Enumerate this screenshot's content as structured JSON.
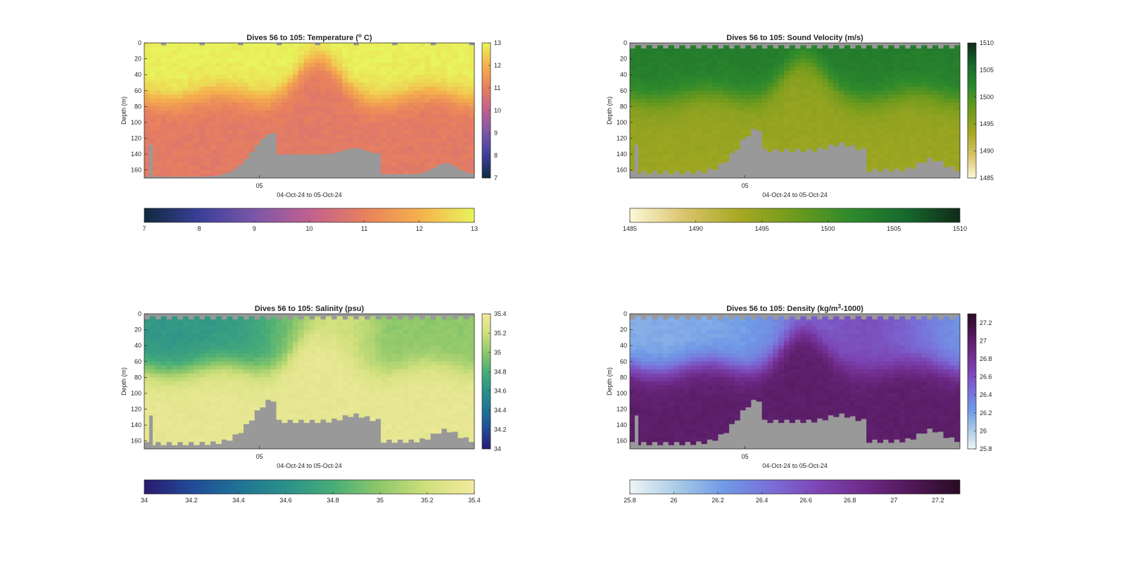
{
  "chart_data": [
    {
      "type": "heatmap",
      "variable": "temperature",
      "title_parts": {
        "pre": "Dives 56 to 105: Temperature (",
        "sup": "o",
        "post": " C)"
      },
      "xlabel": "04-Oct-24 to 05-Oct-24",
      "ylabel": "Depth (m)",
      "x_ticks": [
        {
          "label": "05",
          "frac": 0.349
        }
      ],
      "y_ticks": [
        0,
        20,
        40,
        60,
        80,
        100,
        120,
        140,
        160
      ],
      "ylim": [
        0,
        170
      ],
      "clim": [
        7,
        13
      ],
      "colorbar_ticks": [
        "7",
        "8",
        "9",
        "10",
        "11",
        "12",
        "13"
      ],
      "hcolorbar_ticks": [
        "7",
        "8",
        "9",
        "10",
        "11",
        "12",
        "13"
      ],
      "colormap": [
        "#0f2a3e",
        "#3b3f9a",
        "#7a56a8",
        "#c0608f",
        "#e8805e",
        "#f5b04c",
        "#e8f45c"
      ],
      "nodata_color": "#999999",
      "surface_gaps": false,
      "profile_fn": "temp",
      "bottom_offset": 0
    },
    {
      "type": "heatmap",
      "variable": "sound_velocity",
      "title_parts": {
        "pre": "Dives 56 to 105: Sound Velocity (m/s)",
        "sup": "",
        "post": ""
      },
      "xlabel": "04-Oct-24 to 05-Oct-24",
      "ylabel": "Depth (m)",
      "x_ticks": [
        {
          "label": "05",
          "frac": 0.349
        }
      ],
      "y_ticks": [
        0,
        20,
        40,
        60,
        80,
        100,
        120,
        140,
        160
      ],
      "ylim": [
        0,
        170
      ],
      "clim": [
        1485,
        1510
      ],
      "colorbar_ticks": [
        "1485",
        "1490",
        "1495",
        "1500",
        "1505",
        "1510"
      ],
      "hcolorbar_ticks": [
        "1485",
        "1490",
        "1495",
        "1500",
        "1505",
        "1510"
      ],
      "colormap": [
        "#fdf8d8",
        "#d8c46a",
        "#a7a823",
        "#6e9a1d",
        "#2f8a2c",
        "#166a2c",
        "#102a18"
      ],
      "nodata_color": "#999999",
      "surface_gaps": true,
      "profile_fn": "sv",
      "bottom_offset": 5
    },
    {
      "type": "heatmap",
      "variable": "salinity",
      "title_parts": {
        "pre": "Dives 56 to 105: Salinity (psu)",
        "sup": "",
        "post": ""
      },
      "xlabel": "04-Oct-24 to 05-Oct-24",
      "ylabel": "Depth (m)",
      "x_ticks": [
        {
          "label": "05",
          "frac": 0.349
        }
      ],
      "y_ticks": [
        0,
        20,
        40,
        60,
        80,
        100,
        120,
        140,
        160
      ],
      "ylim": [
        0,
        170
      ],
      "clim": [
        34,
        35.4
      ],
      "colorbar_ticks": [
        "34",
        "34.2",
        "34.4",
        "34.6",
        "34.8",
        "35",
        "35.2",
        "35.4"
      ],
      "hcolorbar_ticks": [
        "34",
        "34.2",
        "34.4",
        "34.6",
        "34.8",
        "35",
        "35.2",
        "35.4"
      ],
      "colormap": [
        "#2a1a6e",
        "#214a98",
        "#1f7295",
        "#2b908b",
        "#47ad77",
        "#8fc86a",
        "#d0e07c",
        "#f3ea9e"
      ],
      "nodata_color": "#999999",
      "surface_gaps": true,
      "profile_fn": "sal",
      "bottom_offset": 5
    },
    {
      "type": "heatmap",
      "variable": "density",
      "title_parts": {
        "pre": "Dives 56 to 105: Density (kg/m",
        "sup": "3",
        "post": "-1000)"
      },
      "xlabel": "04-Oct-24 to 05-Oct-24",
      "ylabel": "Depth (m)",
      "x_ticks": [
        {
          "label": "05",
          "frac": 0.349
        }
      ],
      "y_ticks": [
        0,
        20,
        40,
        60,
        80,
        100,
        120,
        140,
        160
      ],
      "ylim": [
        0,
        170
      ],
      "clim": [
        25.8,
        27.3
      ],
      "colorbar_ticks": [
        "25.8",
        "26",
        "26.2",
        "26.4",
        "26.6",
        "26.8",
        "27",
        "27.2"
      ],
      "hcolorbar_ticks": [
        "25.8",
        "26",
        "26.2",
        "26.4",
        "26.6",
        "26.8",
        "27",
        "27.2"
      ],
      "colormap": [
        "#eef5f6",
        "#a9cbe6",
        "#6f9ae6",
        "#7a6ed8",
        "#7c45b4",
        "#6e2a88",
        "#4f1755",
        "#2a0b22"
      ],
      "nodata_color": "#999999",
      "surface_gaps": true,
      "profile_fn": "dens",
      "bottom_offset": 5
    }
  ]
}
